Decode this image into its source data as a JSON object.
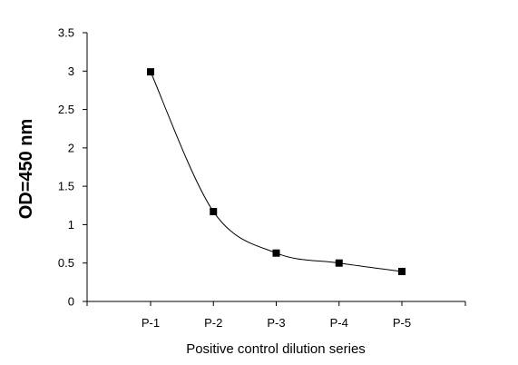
{
  "chart_data": {
    "type": "line",
    "title": "",
    "xlabel": "Positive control dilution series",
    "ylabel": "OD=450 nm",
    "categories": [
      "P-1",
      "P-2",
      "P-3",
      "P-4",
      "P-5"
    ],
    "series": [
      {
        "values": [
          2.99,
          1.17,
          0.63,
          0.5,
          0.39
        ]
      }
    ],
    "ylim": [
      0,
      3.5
    ],
    "yticks": [
      0,
      0.5,
      1,
      1.5,
      2,
      2.5,
      3,
      3.5
    ],
    "ytick_labels": [
      "0",
      "0.5",
      "1",
      "1.5",
      "2",
      "2.5",
      "3",
      "3.5"
    ],
    "grid": false,
    "legend": "none",
    "line_style": "smooth",
    "marker": "square",
    "colors": {
      "line": "#000000",
      "marker": "#000000",
      "axis": "#000000"
    }
  }
}
